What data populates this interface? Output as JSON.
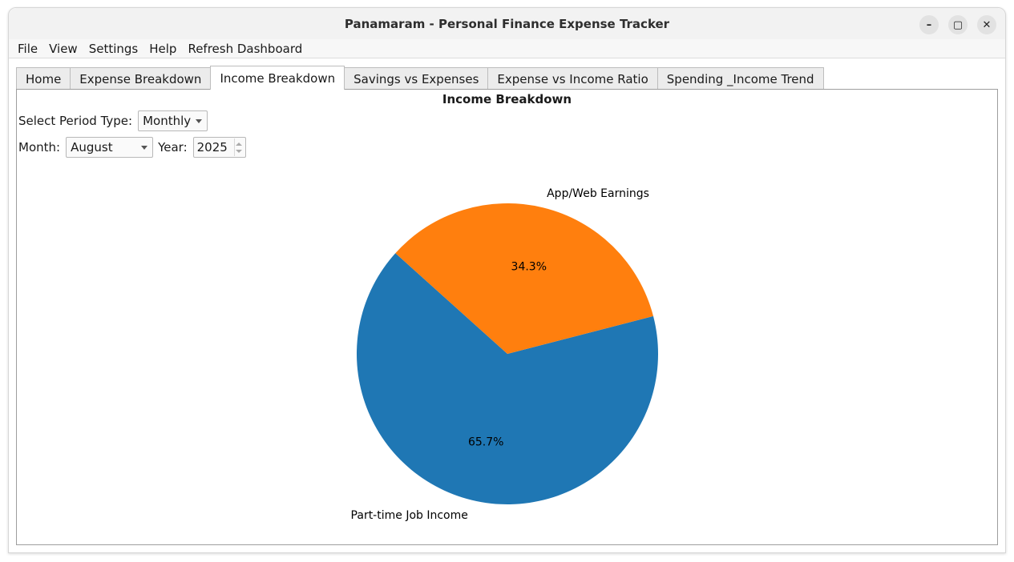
{
  "window": {
    "title": "Panamaram - Personal Finance Expense Tracker",
    "controls": {
      "minimize": "–",
      "maximize": "▢",
      "close": "✕"
    }
  },
  "menu": [
    "File",
    "View",
    "Settings",
    "Help",
    "Refresh Dashboard"
  ],
  "tabs": [
    {
      "label": "Home"
    },
    {
      "label": "Expense Breakdown"
    },
    {
      "label": "Income Breakdown",
      "active": true
    },
    {
      "label": "Savings vs Expenses"
    },
    {
      "label": "Expense vs Income Ratio"
    },
    {
      "label": "Spending _Income Trend"
    }
  ],
  "panel": {
    "title": "Income Breakdown",
    "period_label": "Select Period Type:",
    "period_value": "Monthly",
    "month_label": "Month:",
    "month_value": "August",
    "year_label": "Year:",
    "year_value": "2025"
  },
  "chart_data": {
    "type": "pie",
    "title": "",
    "slices": [
      {
        "label": "Part-time Job Income",
        "value": 65.7,
        "pct_label": "65.7%",
        "color": "#1f77b4"
      },
      {
        "label": "App/Web Earnings",
        "value": 34.3,
        "pct_label": "34.3%",
        "color": "#ff7f0e"
      }
    ]
  }
}
